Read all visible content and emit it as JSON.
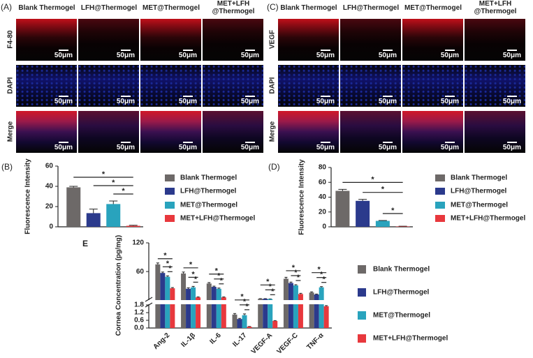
{
  "panels": [
    {
      "label": "(A)",
      "columns": [
        "Blank Thermogel",
        "LFH@Thermogel",
        "MET@Thermogel",
        "MET+LFH @Thermogel"
      ],
      "rows": [
        "F4-80",
        "DAPI",
        "Merge"
      ],
      "scale_bar": "50μm"
    },
    {
      "label": "(C)",
      "columns": [
        "Blank Thermogel",
        "LFH@Thermogel",
        "MET@Thermogel",
        "MET+LFH @Thermogel"
      ],
      "rows": [
        "VEGF",
        "DAPI",
        "Merge"
      ],
      "scale_bar": "50μm"
    }
  ],
  "chart_data": [
    {
      "type": "bar",
      "panel_label": "(B)",
      "y_label": "Fluorescence Intensity",
      "categories": [
        "Blank Thermogel",
        "LFH@Thermogel",
        "MET@Thermogel",
        "MET+LFH@Thermogel"
      ],
      "colors": [
        "#6d6968",
        "#2b3a8c",
        "#29a3bd",
        "#e8383d"
      ],
      "values": [
        39,
        13.5,
        22.5,
        1
      ],
      "errors": [
        1,
        4,
        3,
        0.5
      ],
      "ylim": [
        0,
        60
      ],
      "yticks": [
        0,
        20,
        40,
        60
      ],
      "significance": [
        {
          "from": 0,
          "to": 3,
          "label": "*"
        },
        {
          "from": 1,
          "to": 3,
          "label": "*"
        },
        {
          "from": 2,
          "to": 3,
          "label": "*"
        }
      ]
    },
    {
      "type": "bar",
      "panel_label": "(D)",
      "y_label": "Fluorescence Intensity",
      "categories": [
        "Blank Thermogel",
        "LFH@Thermogel",
        "MET@Thermogel",
        "MET+LFH@Thermogel"
      ],
      "colors": [
        "#6d6968",
        "#2b3a8c",
        "#29a3bd",
        "#e8383d"
      ],
      "values": [
        48.5,
        35,
        8,
        0.5
      ],
      "errors": [
        2,
        2,
        0.5,
        0.3
      ],
      "ylim": [
        0,
        80
      ],
      "yticks": [
        0,
        20,
        40,
        60,
        80
      ],
      "significance": [
        {
          "from": 0,
          "to": 3,
          "label": "*"
        },
        {
          "from": 1,
          "to": 3,
          "label": "*"
        },
        {
          "from": 2,
          "to": 3,
          "label": "*"
        }
      ]
    },
    {
      "type": "grouped_bar",
      "panel_label": "E",
      "y_label": "Cornea Concentration (pg/mg)",
      "categories": [
        "Ang-2",
        "IL-1β",
        "IL-6",
        "IL-17",
        "VEGF-A",
        "VEGF-C",
        "TNF-α"
      ],
      "series": [
        {
          "name": "Blank Thermogel",
          "color": "#6d6968",
          "values": [
            75,
            56,
            35,
            1.05,
            3,
            45,
            16
          ],
          "errors": [
            3,
            3,
            2,
            0.08,
            0.4,
            3,
            1.5
          ]
        },
        {
          "name": "LFH@Thermogel",
          "color": "#2b3a8c",
          "values": [
            57,
            24,
            28,
            0.7,
            3,
            36,
            12
          ],
          "errors": [
            2,
            2,
            1.5,
            0.05,
            0.4,
            2,
            1
          ]
        },
        {
          "name": "MET@Thermogel",
          "color": "#29a3bd",
          "values": [
            49,
            27,
            24,
            1.0,
            2.5,
            31,
            27
          ],
          "errors": [
            2,
            2,
            1.5,
            0.1,
            0.3,
            1.5,
            1.5
          ]
        },
        {
          "name": "MET+LFH@Thermogel",
          "color": "#e8383d",
          "values": [
            25,
            6,
            6,
            0.1,
            0.55,
            13,
            1.7
          ],
          "errors": [
            1.5,
            1,
            1,
            0.02,
            0.03,
            1.5,
            0.05
          ]
        }
      ],
      "ylim": [
        0,
        120
      ],
      "ybreak": 1.8,
      "yticks": [
        {
          "value": 0,
          "label": "0.0"
        },
        0.6,
        1.2,
        1.8,
        60,
        120
      ],
      "significance": [
        {
          "from": 0,
          "to": 3,
          "label": "*"
        },
        {
          "from": 1,
          "to": 3,
          "label": "*"
        },
        {
          "from": 2,
          "to": 3,
          "label": "*"
        }
      ]
    }
  ]
}
